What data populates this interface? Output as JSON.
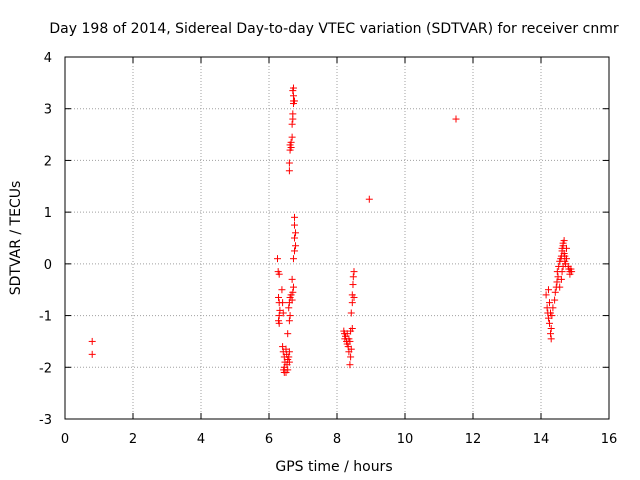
{
  "chart_data": {
    "type": "scatter",
    "title": "Day 198 of 2014, Sidereal Day-to-day VTEC variation (SDTVAR) for receiver cnmr",
    "xlabel": "GPS time / hours",
    "ylabel": "SDTVAR / TECUs",
    "xlim": [
      0,
      16
    ],
    "ylim": [
      -3,
      4
    ],
    "xticks": [
      0,
      2,
      4,
      6,
      8,
      10,
      12,
      14,
      16
    ],
    "yticks": [
      -3,
      -2,
      -1,
      0,
      1,
      2,
      3,
      4
    ],
    "xtick_labels": [
      "0",
      "2",
      "4",
      "6",
      "8",
      "10",
      "12",
      "14",
      "16"
    ],
    "ytick_labels": [
      "-3",
      "-2",
      "-1",
      "0",
      "1",
      "2",
      "3",
      "4"
    ],
    "grid": true,
    "marker": "+",
    "color": "#ff0000",
    "series": [
      {
        "name": "SDTVAR",
        "points": [
          [
            0.8,
            -1.5
          ],
          [
            0.8,
            -1.75
          ],
          [
            6.25,
            0.1
          ],
          [
            6.27,
            -0.15
          ],
          [
            6.3,
            -0.2
          ],
          [
            6.28,
            -0.65
          ],
          [
            6.3,
            -0.75
          ],
          [
            6.32,
            -0.9
          ],
          [
            6.3,
            -1.0
          ],
          [
            6.28,
            -1.1
          ],
          [
            6.3,
            -1.15
          ],
          [
            6.38,
            -0.5
          ],
          [
            6.4,
            -0.75
          ],
          [
            6.42,
            -0.95
          ],
          [
            6.4,
            -1.6
          ],
          [
            6.42,
            -1.7
          ],
          [
            6.45,
            -1.8
          ],
          [
            6.47,
            -1.9
          ],
          [
            6.45,
            -2.0
          ],
          [
            6.43,
            -2.05
          ],
          [
            6.45,
            -2.1
          ],
          [
            6.5,
            -1.65
          ],
          [
            6.52,
            -1.75
          ],
          [
            6.55,
            -1.85
          ],
          [
            6.53,
            -1.95
          ],
          [
            6.55,
            -2.05
          ],
          [
            6.5,
            -2.1
          ],
          [
            6.6,
            -1.7
          ],
          [
            6.58,
            -1.8
          ],
          [
            6.6,
            -1.9
          ],
          [
            6.55,
            -1.35
          ],
          [
            6.6,
            -1.1
          ],
          [
            6.62,
            -1.0
          ],
          [
            6.58,
            -0.85
          ],
          [
            6.6,
            -0.75
          ],
          [
            6.62,
            -0.65
          ],
          [
            6.65,
            -0.6
          ],
          [
            6.68,
            -0.7
          ],
          [
            6.7,
            -0.55
          ],
          [
            6.72,
            -0.45
          ],
          [
            6.68,
            -0.3
          ],
          [
            6.6,
            1.8
          ],
          [
            6.6,
            1.95
          ],
          [
            6.62,
            2.2
          ],
          [
            6.62,
            2.3
          ],
          [
            6.65,
            2.35
          ],
          [
            6.65,
            2.25
          ],
          [
            6.68,
            2.45
          ],
          [
            6.68,
            2.7
          ],
          [
            6.7,
            2.8
          ],
          [
            6.7,
            2.9
          ],
          [
            6.72,
            3.1
          ],
          [
            6.72,
            3.15
          ],
          [
            6.75,
            3.15
          ],
          [
            6.72,
            3.25
          ],
          [
            6.7,
            3.35
          ],
          [
            6.72,
            3.4
          ],
          [
            6.75,
            0.9
          ],
          [
            6.75,
            0.75
          ],
          [
            6.78,
            0.6
          ],
          [
            6.75,
            0.5
          ],
          [
            6.78,
            0.35
          ],
          [
            6.75,
            0.25
          ],
          [
            6.72,
            0.1
          ],
          [
            8.2,
            -1.3
          ],
          [
            8.22,
            -1.35
          ],
          [
            8.25,
            -1.4
          ],
          [
            8.23,
            -1.45
          ],
          [
            8.28,
            -1.5
          ],
          [
            8.3,
            -1.55
          ],
          [
            8.3,
            -1.35
          ],
          [
            8.33,
            -1.6
          ],
          [
            8.35,
            -1.7
          ],
          [
            8.35,
            -1.45
          ],
          [
            8.38,
            -1.5
          ],
          [
            8.4,
            -1.8
          ],
          [
            8.38,
            -1.95
          ],
          [
            8.42,
            -1.65
          ],
          [
            8.4,
            -1.3
          ],
          [
            8.45,
            -1.25
          ],
          [
            8.42,
            -0.95
          ],
          [
            8.45,
            -0.75
          ],
          [
            8.45,
            -0.6
          ],
          [
            8.5,
            -0.65
          ],
          [
            8.47,
            -0.4
          ],
          [
            8.48,
            -0.25
          ],
          [
            8.5,
            -0.15
          ],
          [
            8.95,
            1.25
          ],
          [
            11.5,
            2.8
          ],
          [
            14.15,
            -0.6
          ],
          [
            14.18,
            -0.85
          ],
          [
            14.2,
            -0.95
          ],
          [
            14.22,
            -1.05
          ],
          [
            14.25,
            -1.15
          ],
          [
            14.28,
            -1.35
          ],
          [
            14.3,
            -1.45
          ],
          [
            14.3,
            -1.25
          ],
          [
            14.25,
            -0.75
          ],
          [
            14.22,
            -0.5
          ],
          [
            14.28,
            -0.95
          ],
          [
            14.32,
            -1.0
          ],
          [
            14.35,
            -0.85
          ],
          [
            14.4,
            -0.7
          ],
          [
            14.42,
            -0.55
          ],
          [
            14.45,
            -0.45
          ],
          [
            14.47,
            -0.35
          ],
          [
            14.5,
            -0.25
          ],
          [
            14.48,
            -0.15
          ],
          [
            14.52,
            -0.05
          ],
          [
            14.55,
            0.05
          ],
          [
            14.58,
            0.1
          ],
          [
            14.6,
            0.15
          ],
          [
            14.62,
            0.25
          ],
          [
            14.65,
            0.35
          ],
          [
            14.68,
            0.45
          ],
          [
            14.65,
            0.4
          ],
          [
            14.62,
            0.3
          ],
          [
            14.68,
            0.2
          ],
          [
            14.7,
            0.15
          ],
          [
            14.55,
            -0.45
          ],
          [
            14.6,
            -0.3
          ],
          [
            14.62,
            -0.15
          ],
          [
            14.65,
            -0.05
          ],
          [
            14.7,
            0.05
          ],
          [
            14.72,
            0.0
          ],
          [
            14.75,
            0.3
          ],
          [
            14.75,
            0.1
          ],
          [
            14.8,
            -0.05
          ],
          [
            14.82,
            -0.1
          ],
          [
            14.85,
            -0.15
          ],
          [
            14.88,
            -0.1
          ],
          [
            14.9,
            -0.15
          ],
          [
            14.85,
            -0.2
          ]
        ]
      }
    ]
  }
}
